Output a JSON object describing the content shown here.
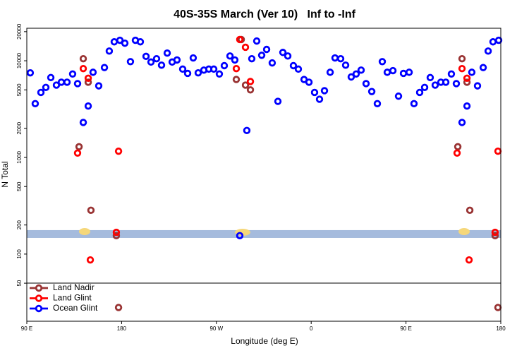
{
  "chart_data": {
    "type": "scatter",
    "title": "40S-35S March (Ver 10)   Inf to -Inf",
    "x_label": "Longitude (deg E)",
    "y_label": "N Total",
    "log_y": true,
    "xlim": [
      90,
      540
    ],
    "xticks": [
      {
        "value": 90,
        "label": "90 E"
      },
      {
        "value": 180,
        "label": "180"
      },
      {
        "value": 270,
        "label": "90 W"
      },
      {
        "value": 360,
        "label": "0"
      },
      {
        "value": 450,
        "label": "90 E"
      },
      {
        "value": 540,
        "label": "180"
      }
    ],
    "ylim": [
      20.2,
      21700
    ],
    "yticks": [
      50,
      100,
      200,
      500,
      1000,
      2000,
      5000,
      10000,
      20000
    ],
    "band": [
      147,
      177
    ],
    "band_color": "#a5bbdd",
    "legend": "bottom-left",
    "series": [
      {
        "name": "Land Nadir",
        "color": "#993333",
        "x": [
          139.6,
          143.6,
          148.3,
          150.9,
          175,
          177.1,
          288.9,
          293.6,
          297.6,
          302.3,
          499.2,
          503.2,
          507.9,
          510.6,
          534.6,
          537.3
        ],
        "values": [
          1290,
          10500,
          6000,
          284,
          155,
          28,
          6400,
          16600,
          5600,
          5000,
          1290,
          10500,
          6000,
          284,
          155,
          28
        ]
      },
      {
        "name": "Land Glint",
        "color": "#ff0000",
        "x": [
          138.2,
          143.6,
          148.3,
          150.3,
          175,
          177.1,
          292.2,
          297.6,
          288.9,
          302.3,
          498.5,
          503.2,
          507.9,
          509.9,
          534.6,
          537.3
        ],
        "values": [
          1110,
          8300,
          6600,
          87,
          168,
          1160,
          16600,
          13800,
          8300,
          6100,
          1110,
          8300,
          6600,
          87,
          168,
          1160
        ]
      },
      {
        "name": "Ocean Glint",
        "color": "#0000ff",
        "x": [
          93.3,
          98,
          103.4,
          108.1,
          112.8,
          118.1,
          122.8,
          128.2,
          133.5,
          138.2,
          143.6,
          148.3,
          152.9,
          158.3,
          163.7,
          168.3,
          173,
          178.4,
          183.1,
          188.4,
          193.1,
          197.8,
          203.2,
          207.9,
          213.2,
          217.9,
          223.3,
          228,
          232.6,
          238,
          242.7,
          248,
          252.7,
          258.1,
          262.8,
          267.5,
          272.8,
          277.5,
          282.9,
          287.5,
          292.2,
          298.9,
          303.6,
          308.3,
          313,
          317.7,
          323,
          328.4,
          333.1,
          337.8,
          343.1,
          347.8,
          353.2,
          357.9,
          363.2,
          367.9,
          372.6,
          378,
          382.6,
          388,
          392.7,
          398,
          402.7,
          407.4,
          412.1,
          417.5,
          422.8,
          427.5,
          432.2,
          437.6,
          442.9,
          447.6,
          453,
          457.6,
          463,
          467.7,
          473,
          477.7,
          483.1,
          487.8,
          493.1,
          497.8,
          503.2,
          507.9,
          512.5,
          517.9,
          523.3,
          528,
          532.6,
          538
        ],
        "values": [
          7500,
          3600,
          4700,
          5300,
          6700,
          5600,
          6000,
          6000,
          7300,
          5800,
          2300,
          3400,
          7600,
          5500,
          8500,
          12600,
          15700,
          16300,
          15200,
          9800,
          16300,
          15700,
          11100,
          9700,
          10500,
          9000,
          12000,
          9700,
          10200,
          8200,
          7400,
          10700,
          7500,
          8000,
          8200,
          8200,
          7300,
          8900,
          11200,
          10200,
          155,
          1900,
          10500,
          16000,
          11400,
          13100,
          9500,
          3800,
          12200,
          11200,
          8900,
          8200,
          6400,
          6000,
          4700,
          4000,
          4900,
          7600,
          10700,
          10500,
          9000,
          6800,
          7300,
          8000,
          5800,
          4800,
          3600,
          9800,
          7600,
          7900,
          4300,
          7400,
          7600,
          3600,
          4700,
          5300,
          6700,
          5600,
          6000,
          6000,
          7300,
          5800,
          2300,
          3400,
          7600,
          5500,
          8500,
          12600,
          15700,
          16300
        ]
      }
    ]
  }
}
